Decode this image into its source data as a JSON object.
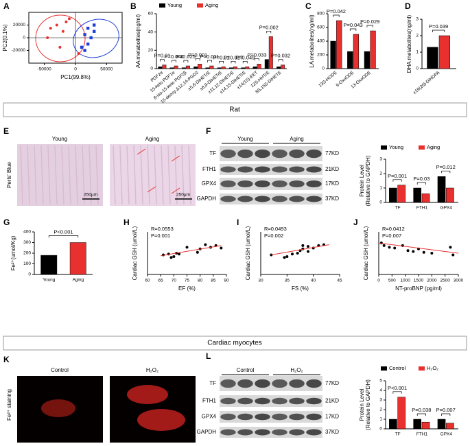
{
  "chart_data": [
    {
      "label": "A",
      "type": "scatter",
      "xlabel": "PC1(99.8%)",
      "ylabel": "PC2(0.1%)",
      "xlim": [
        -75000,
        75000
      ],
      "xticks": [
        -50000,
        0,
        50000
      ],
      "ylim": [
        -40000,
        40000
      ],
      "yticks": [
        -20000,
        0,
        20000
      ],
      "zero_lines": true,
      "series": [
        {
          "color": "#e8312f",
          "x": [
            -45000,
            -40000,
            -30000,
            -25000,
            -20000,
            -15000,
            -10000,
            5000
          ],
          "values": [
            0,
            15000,
            20000,
            -15000,
            10000,
            25000,
            30000,
            -25000
          ]
        },
        {
          "color": "#1f3fd6",
          "x": [
            10000,
            15000,
            20000,
            25000,
            30000,
            20000,
            15000,
            30000
          ],
          "values": [
            -15000,
            5000,
            15000,
            0,
            10000,
            -10000,
            -20000,
            20000
          ]
        }
      ]
    },
    {
      "label": "B",
      "type": "bar",
      "ylabel": "AA metabolites(ng/ml)",
      "ylim": [
        0,
        60
      ],
      "yticks": [
        0,
        20,
        40,
        60
      ],
      "categories": [
        "PGF2α",
        "15-keto PGF1α",
        "8-iso-15-keto PGF2β",
        "15-deoxy-Δ12,14-PGD2",
        "±5,6-DiHETrE",
        "±8,9-DiHETrE",
        "±11,12-DiHETrE",
        "±14,15-DiHETrE",
        "±14(15)-EET",
        "12S-HHTrE",
        "8S,15S-DiHETE"
      ],
      "series": [
        {
          "name": "Young",
          "color": "#000000",
          "values": [
            2,
            1,
            1,
            2,
            1,
            1,
            1,
            1,
            2,
            10,
            2
          ]
        },
        {
          "name": "Aging",
          "color": "#e8312f",
          "values": [
            4,
            3,
            3,
            5,
            3,
            2,
            2,
            2,
            5,
            35,
            4
          ]
        }
      ],
      "annotations": [
        "P=0.01",
        "P=0.046",
        "P=0.025",
        "P=0.001",
        "P=0.011",
        "P=0.01",
        "P=0.027",
        "P=0.049",
        "P=0.033",
        "P=0.002",
        "P=0.032"
      ]
    },
    {
      "label": "C",
      "type": "bar",
      "ylabel": "LA metabolites(ng/ml)",
      "ylim": [
        0,
        800
      ],
      "yticks": [
        0,
        200,
        400,
        600,
        800
      ],
      "categories": [
        "13S-HODE",
        "9-OxoODE",
        "13-OxoODE"
      ],
      "series": [
        {
          "color": "#000000",
          "values": [
            400,
            250,
            250
          ]
        },
        {
          "color": "#e8312f",
          "values": [
            700,
            500,
            550
          ]
        }
      ],
      "annotations": [
        "P=0.042",
        "P=0.043",
        "P=0.029"
      ]
    },
    {
      "label": "D",
      "type": "bar",
      "ylabel": "DHA metabolites(ng/ml)",
      "ylim": [
        0,
        3
      ],
      "yticks": [
        0,
        1,
        2,
        3
      ],
      "categories": [
        "±19(20)-DiHDPA"
      ],
      "series": [
        {
          "color": "#000000",
          "values": [
            1.3
          ]
        },
        {
          "color": "#e8312f",
          "values": [
            2.0
          ]
        }
      ],
      "annotations": [
        "P=0.039"
      ]
    },
    {
      "label": "F",
      "type": "bar",
      "ylabel": [
        "Protein Level",
        "(Relative to GAPDH)"
      ],
      "ylim": [
        0,
        3
      ],
      "yticks": [
        0,
        1,
        2,
        3
      ],
      "categories": [
        "TF",
        "FTH1",
        "GPX4"
      ],
      "series": [
        {
          "name": "Young",
          "color": "#000000",
          "values": [
            1.0,
            1.0,
            1.8
          ]
        },
        {
          "name": "Aging",
          "color": "#e8312f",
          "values": [
            1.2,
            0.6,
            1.0
          ]
        }
      ],
      "annotations": [
        "P=0.001",
        "P=0.03",
        "P=0.012"
      ]
    },
    {
      "label": "G",
      "type": "bar",
      "ylabel": "Fe²⁺(umol/Kg)",
      "ylim": [
        0,
        400
      ],
      "yticks": [
        0,
        100,
        200,
        300,
        400
      ],
      "categories": [
        "Young",
        "Aging"
      ],
      "values": [
        180,
        300
      ],
      "colors": [
        "#000000",
        "#e8312f"
      ],
      "annotation": "P<0.001"
    },
    {
      "label": "H",
      "type": "scatter",
      "xlabel": "EF (%)",
      "ylabel": "Cardiac GSH (umol/L)",
      "xlim": [
        60,
        90
      ],
      "xticks": [
        60,
        65,
        70,
        75,
        80,
        85,
        90
      ],
      "ylim": [
        0,
        250
      ],
      "series": [
        {
          "color": "#000000",
          "x": [
            66,
            68,
            69,
            70,
            71,
            72,
            75,
            79,
            80,
            82,
            84,
            86,
            88
          ],
          "values": [
            115,
            120,
            100,
            105,
            125,
            120,
            160,
            130,
            150,
            175,
            160,
            170,
            155
          ]
        }
      ],
      "fit": {
        "color": "#e8312f",
        "x": [
          65,
          88
        ],
        "y": [
          110,
          170
        ]
      },
      "annotations": [
        "R=0.0553",
        "P=0.001"
      ]
    },
    {
      "label": "I",
      "type": "scatter",
      "xlabel": "FS (%)",
      "ylabel": "Cardiac GSH (umol/L)",
      "xlim": [
        30,
        45
      ],
      "xticks": [
        30,
        35,
        40,
        45
      ],
      "ylim": [
        0,
        250
      ],
      "series": [
        {
          "color": "#000000",
          "x": [
            32,
            34.5,
            35,
            36,
            37,
            37.5,
            38,
            38,
            39,
            39,
            40,
            41,
            42
          ],
          "values": [
            115,
            100,
            105,
            120,
            125,
            140,
            150,
            170,
            135,
            165,
            155,
            170,
            175
          ]
        }
      ],
      "fit": {
        "color": "#e8312f",
        "x": [
          32,
          43
        ],
        "y": [
          115,
          175
        ]
      },
      "annotations": [
        "R=0.0493",
        "P=0.002"
      ]
    },
    {
      "label": "J",
      "type": "scatter",
      "xlabel": "NT-proBNP (pg/ml)",
      "ylabel": "Cardiac GSH (umol/L)",
      "xlim": [
        0,
        3000
      ],
      "xticks": [
        0,
        500,
        1000,
        1500,
        2000,
        2500,
        3000
      ],
      "ylim": [
        0,
        250
      ],
      "series": [
        {
          "color": "#000000",
          "x": [
            100,
            200,
            400,
            600,
            900,
            1100,
            1300,
            1500,
            1700,
            2000,
            2700,
            2800
          ],
          "values": [
            185,
            170,
            160,
            155,
            170,
            140,
            135,
            150,
            130,
            125,
            160,
            115
          ]
        }
      ],
      "fit": {
        "color": "#e8312f",
        "x": [
          0,
          3000
        ],
        "y": [
          185,
          125
        ]
      },
      "annotations": [
        "R=0.0412",
        "P=0.007"
      ]
    },
    {
      "label": "L",
      "type": "bar",
      "ylabel": [
        "Protein Level",
        "(Relative to GAPDH)"
      ],
      "ylim": [
        0,
        5
      ],
      "yticks": [
        0,
        1,
        2,
        3,
        4,
        5
      ],
      "categories": [
        "TF",
        "FTH1",
        "GPX4"
      ],
      "series": [
        {
          "name": "Control",
          "color": "#000000",
          "values": [
            1.0,
            1.0,
            1.0
          ]
        },
        {
          "name": "H₂O₂",
          "color": "#e8312f",
          "values": [
            3.3,
            0.7,
            0.6
          ]
        }
      ],
      "annotations": [
        "P<0.001",
        "P=0.038",
        "P=0.007"
      ]
    }
  ],
  "figure": {
    "banners": [
      "Rat",
      "Cardiac myocytes"
    ],
    "E": {
      "label": "E",
      "titles": [
        "Young",
        "Aging"
      ],
      "stain": "Perls' Blue",
      "scale": [
        "250μm",
        "250μm"
      ]
    },
    "F_blot": {
      "groups": [
        "Young",
        "Aging"
      ],
      "rows": [
        "TF",
        "FTH1",
        "GPX4",
        "GAPDH"
      ],
      "sizes": [
        "77KD",
        "21KD",
        "17KD",
        "37KD"
      ]
    },
    "K": {
      "label": "K",
      "titles": [
        "Control",
        "H₂O₂"
      ],
      "stain": "Fe²⁺ staining"
    },
    "L_blot": {
      "groups": [
        "Control",
        "H₂O₂"
      ],
      "rows": [
        "TF",
        "FTH1",
        "GPX4",
        "GAPDH"
      ],
      "sizes": [
        "77KD",
        "21KD",
        "17KD",
        "37KD"
      ]
    }
  }
}
